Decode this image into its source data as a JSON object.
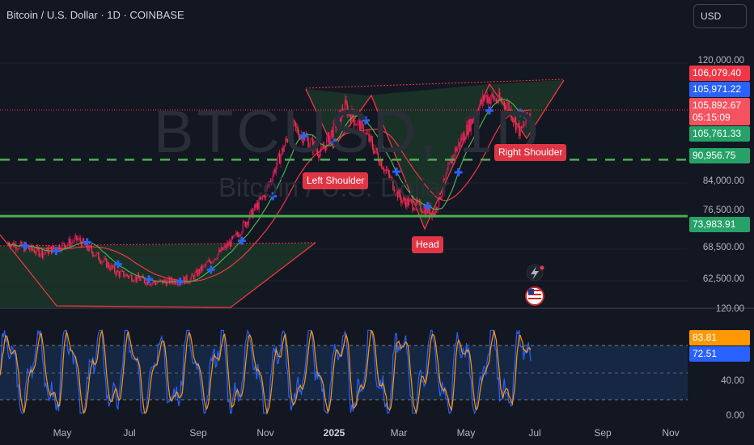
{
  "header": {
    "symbol_line": "Bitcoin / U.S. Dollar · 1D · COINBASE",
    "currency_button": "USD"
  },
  "watermark": {
    "ticker": "BTCUSD, 1D",
    "name": "Bitcoin / U.S. Dollar"
  },
  "pattern_labels": {
    "left_shoulder": "Left Shoulder",
    "head": "Head",
    "right_shoulder": "Right Shoulder"
  },
  "colors": {
    "background": "#131722",
    "up_candle": "#f23645",
    "ma_fast": "#4caf50",
    "ma_slow": "#f23645",
    "support_line": "#4caf50",
    "neckline_dashed": "#4caf50",
    "pattern_fill": "#1e3b2a",
    "stoch_k": "#2962ff",
    "stoch_d": "#ff9800",
    "marker": "#2962ff"
  },
  "price_axis": {
    "tick_labels": [
      "120,000.00",
      "84,000.00",
      "76,500.00",
      "68,500.00",
      "62,500.00"
    ],
    "tags": {
      "high": "106,079.40",
      "ask": "105,971.22",
      "last": "105,892.67",
      "countdown": "05:15:09",
      "low": "105,761.33",
      "neckline": "90,956.75",
      "support": "73,983.91"
    }
  },
  "oscillator_axis": {
    "tick_labels": [
      "120.00",
      "40.00",
      "0.00"
    ],
    "tags": {
      "k": "83.81",
      "d": "72.51"
    }
  },
  "time_axis": [
    "May",
    "Jul",
    "Sep",
    "Nov",
    "2025",
    "Mar",
    "May",
    "Jul",
    "Sep",
    "Nov"
  ],
  "chart_data": {
    "type": "candlestick",
    "x_range": [
      "2024-04",
      "2025-11"
    ],
    "ylim": [
      56000,
      124000
    ],
    "price_waypoints": [
      {
        "date": "2024-04-01",
        "price": 66000
      },
      {
        "date": "2024-05-01",
        "price": 63000
      },
      {
        "date": "2024-06-01",
        "price": 67000
      },
      {
        "date": "2024-07-05",
        "price": 57000
      },
      {
        "date": "2024-08-05",
        "price": 54000
      },
      {
        "date": "2024-09-07",
        "price": 55000
      },
      {
        "date": "2024-10-15",
        "price": 67000
      },
      {
        "date": "2024-11-10",
        "price": 80000
      },
      {
        "date": "2024-12-05",
        "price": 101000
      },
      {
        "date": "2024-12-30",
        "price": 93000
      },
      {
        "date": "2025-01-20",
        "price": 107000
      },
      {
        "date": "2025-02-10",
        "price": 97000
      },
      {
        "date": "2025-03-10",
        "price": 79000
      },
      {
        "date": "2025-04-08",
        "price": 75000
      },
      {
        "date": "2025-04-25",
        "price": 93000
      },
      {
        "date": "2025-05-22",
        "price": 110000
      },
      {
        "date": "2025-06-10",
        "price": 108000
      },
      {
        "date": "2025-06-22",
        "price": 99000
      },
      {
        "date": "2025-07-01",
        "price": 105892.67
      }
    ],
    "horizontal_lines": [
      {
        "name": "neckline",
        "value": 90956.75,
        "style": "dashed"
      },
      {
        "name": "support",
        "value": 73983.91,
        "style": "solid"
      }
    ],
    "oscillator": {
      "type": "stochastic",
      "ylim": [
        0,
        120
      ],
      "bands": [
        20,
        80
      ],
      "k_last": 83.81,
      "d_last": 72.51
    }
  }
}
